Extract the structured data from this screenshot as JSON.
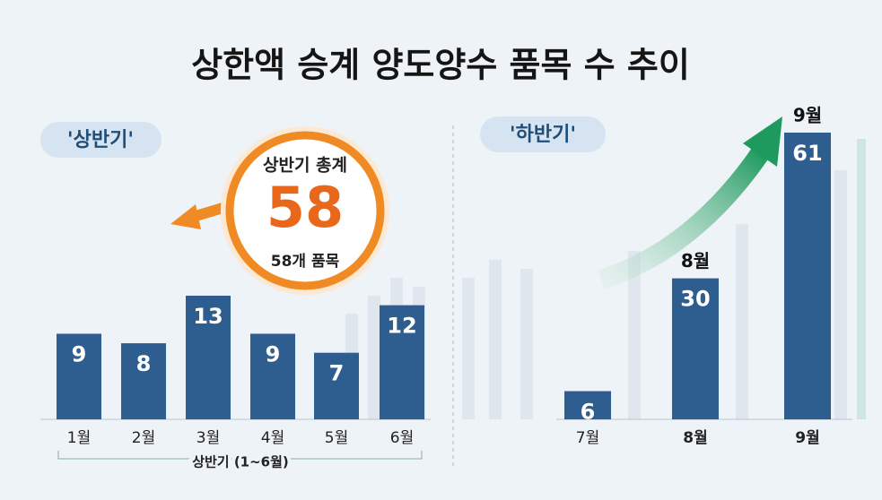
{
  "title": "상한액 승계 양도양수 품목 수 추이",
  "chart_data": [
    {
      "type": "bar",
      "badge": "'상반기'",
      "categories": [
        "1월",
        "2월",
        "3월",
        "4월",
        "5월",
        "6월"
      ],
      "values": [
        9,
        8,
        13,
        9,
        7,
        12
      ],
      "color": "#2e5d8f",
      "x_label": "상반기 (1~6월)",
      "total": {
        "label": "상반기 총계",
        "value": 58,
        "caption": "58개 품목"
      }
    },
    {
      "type": "bar",
      "badge": "'하반기'",
      "categories": [
        "7월",
        "8월",
        "9월"
      ],
      "values": [
        6,
        30,
        61
      ],
      "color": "#2e5d8f",
      "highlight": [
        false,
        true,
        true
      ]
    }
  ]
}
